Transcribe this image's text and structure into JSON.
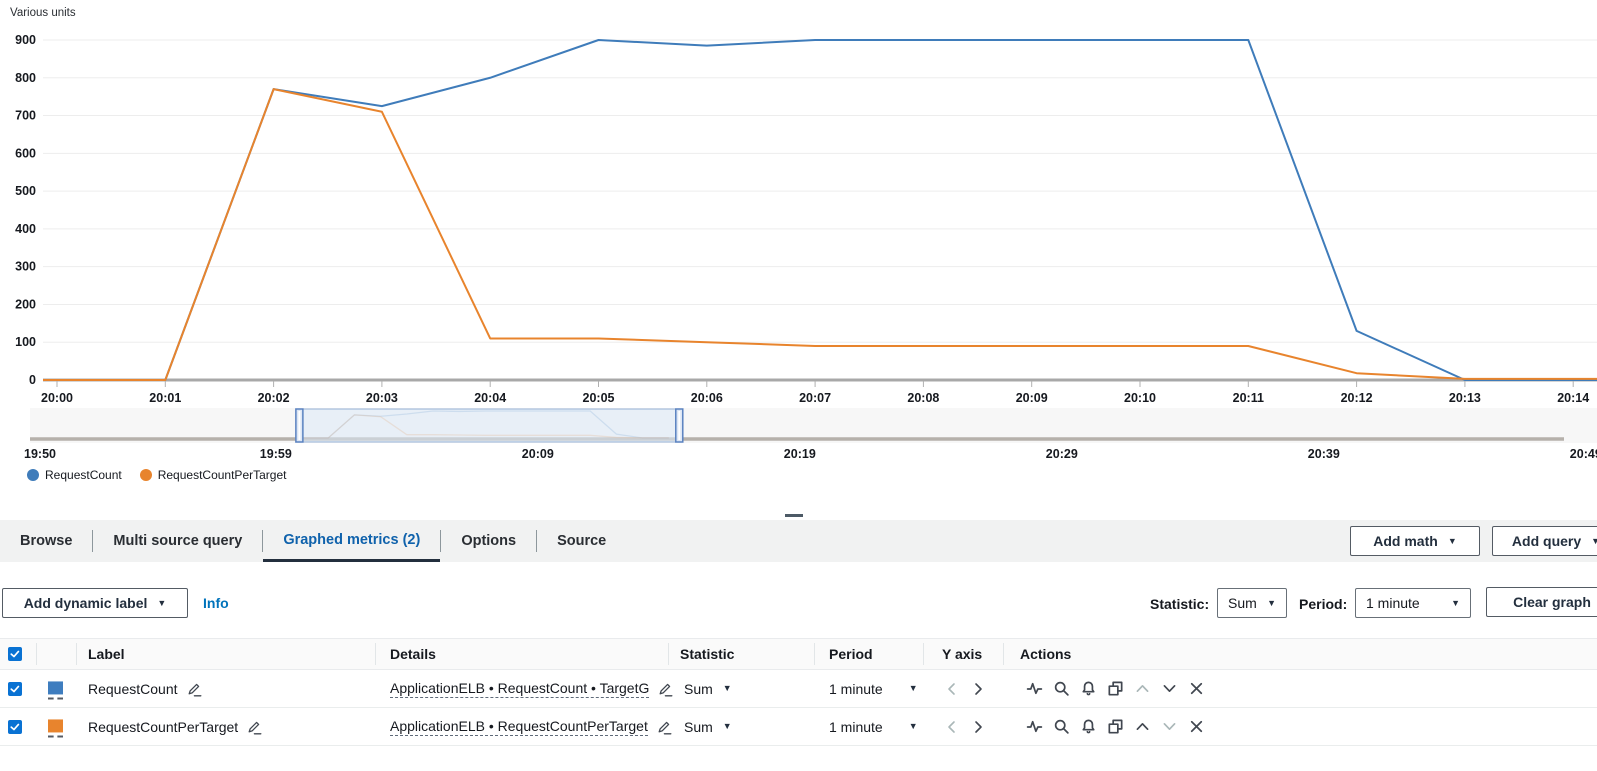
{
  "chart_data": {
    "type": "line",
    "title": "Various units",
    "x": [
      "20:00",
      "20:01",
      "20:02",
      "20:03",
      "20:04",
      "20:05",
      "20:06",
      "20:07",
      "20:08",
      "20:09",
      "20:10",
      "20:11",
      "20:12",
      "20:13",
      "20:14"
    ],
    "ylim": [
      0,
      900
    ],
    "y_tick_step": 100,
    "grid": true,
    "legend_position": "bottom-left",
    "series": [
      {
        "name": "RequestCount",
        "color": "#3f7cba",
        "values": [
          0,
          0,
          770,
          725,
          800,
          900,
          885,
          900,
          900,
          900,
          900,
          900,
          130,
          0,
          0
        ]
      },
      {
        "name": "RequestCountPerTarget",
        "color": "#e8842d",
        "values": [
          0,
          0,
          770,
          710,
          110,
          110,
          100,
          90,
          90,
          90,
          90,
          90,
          18,
          3,
          3
        ]
      }
    ],
    "overview_timeline": {
      "labels": [
        "19:50",
        "19:59",
        "20:09",
        "20:19",
        "20:29",
        "20:39",
        "20:49"
      ],
      "label_minutes": [
        0,
        9,
        19,
        29,
        39,
        49,
        59
      ],
      "selection_window": [
        "20:00",
        "20:14"
      ]
    }
  },
  "axis_title": "Various units",
  "legend": {
    "items": [
      {
        "label": "RequestCount",
        "color": "#3f7cba"
      },
      {
        "label": "RequestCountPerTarget",
        "color": "#e8842d"
      }
    ]
  },
  "tabs": [
    {
      "label": "Browse",
      "active": false
    },
    {
      "label": "Multi source query",
      "active": false
    },
    {
      "label": "Graphed metrics (2)",
      "active": true
    },
    {
      "label": "Options",
      "active": false
    },
    {
      "label": "Source",
      "active": false
    }
  ],
  "toolbar": {
    "add_math": "Add math",
    "add_query": "Add query"
  },
  "controls": {
    "add_dynamic_label": "Add dynamic label",
    "info": "Info",
    "statistic_label": "Statistic:",
    "statistic_value": "Sum",
    "period_label": "Period:",
    "period_value": "1 minute",
    "clear_graph": "Clear graph"
  },
  "table": {
    "select_all_checked": true,
    "headers": [
      "Label",
      "Details",
      "Statistic",
      "Period",
      "Y axis",
      "Actions"
    ],
    "action_icons": [
      "pulse-icon",
      "zoom-icon",
      "alarm-icon",
      "duplicate-icon",
      "move-up-icon",
      "move-down-icon",
      "remove-icon"
    ],
    "rows": [
      {
        "checked": true,
        "color": "#3e7dbf",
        "label": "RequestCount",
        "details": "ApplicationELB • RequestCount • TargetG",
        "statistic": "Sum",
        "period": "1 minute",
        "up_disabled": true,
        "down_disabled": false
      },
      {
        "checked": true,
        "color": "#e8842d",
        "label": "RequestCountPerTarget",
        "details": "ApplicationELB • RequestCountPerTarget",
        "statistic": "Sum",
        "period": "1 minute",
        "up_disabled": false,
        "down_disabled": true
      }
    ]
  }
}
